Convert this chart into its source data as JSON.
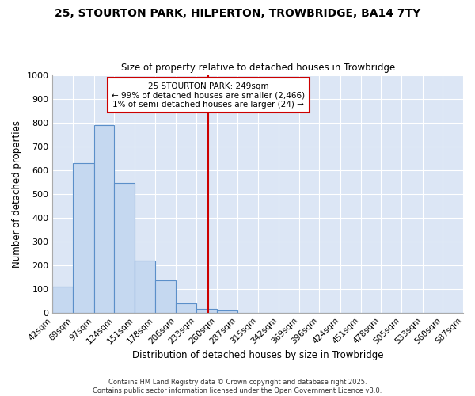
{
  "title": "25, STOURTON PARK, HILPERTON, TROWBRIDGE, BA14 7TY",
  "subtitle": "Size of property relative to detached houses in Trowbridge",
  "xlabel": "Distribution of detached houses by size in Trowbridge",
  "ylabel": "Number of detached properties",
  "annotation_title": "25 STOURTON PARK: 249sqm",
  "annotation_line1": "← 99% of detached houses are smaller (2,466)",
  "annotation_line2": "1% of semi-detached houses are larger (24) →",
  "property_size": 249,
  "vertical_line_x": 249,
  "bin_edges": [
    42,
    69,
    97,
    124,
    151,
    178,
    206,
    233,
    260,
    287,
    315,
    342,
    369,
    396,
    424,
    451,
    478,
    505,
    533,
    560,
    587
  ],
  "bin_counts": [
    110,
    630,
    790,
    545,
    220,
    135,
    40,
    15,
    10,
    0,
    0,
    0,
    0,
    0,
    0,
    0,
    0,
    0,
    0,
    0
  ],
  "bar_color": "#c5d8f0",
  "bar_edge_color": "#5b8fc9",
  "line_color": "#cc0000",
  "annotation_box_color": "#cc0000",
  "fig_background_color": "#ffffff",
  "plot_background_color": "#dce6f5",
  "grid_color": "#ffffff",
  "ylim": [
    0,
    1000
  ],
  "yticks": [
    0,
    100,
    200,
    300,
    400,
    500,
    600,
    700,
    800,
    900,
    1000
  ],
  "footer_line1": "Contains HM Land Registry data © Crown copyright and database right 2025.",
  "footer_line2": "Contains public sector information licensed under the Open Government Licence v3.0."
}
